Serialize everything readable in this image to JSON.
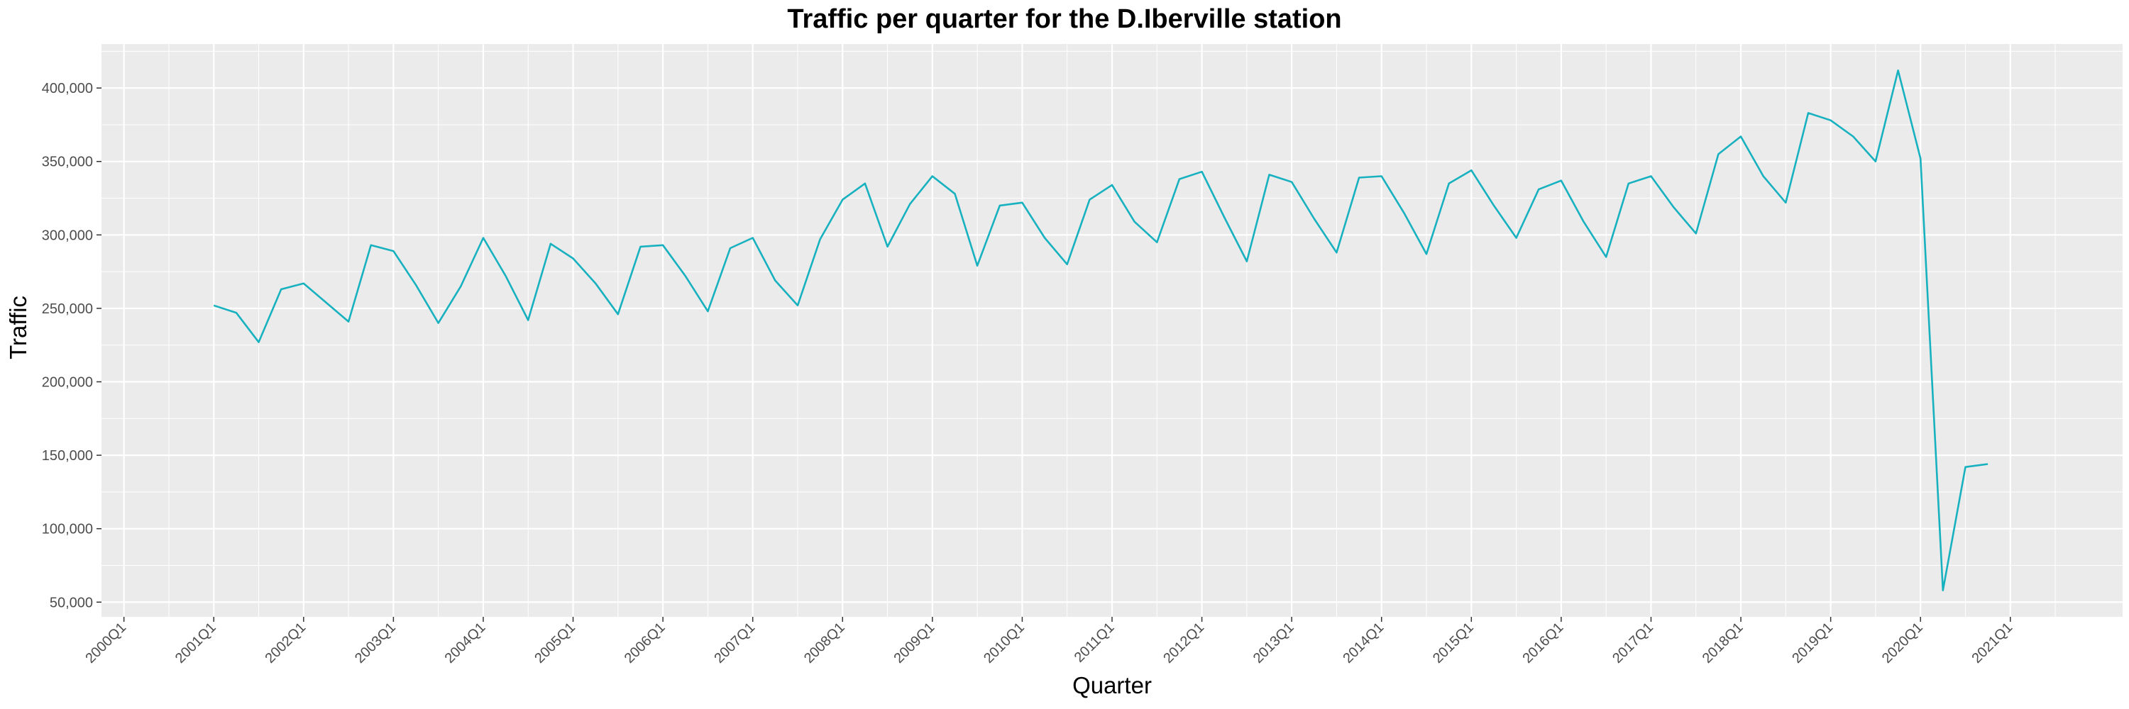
{
  "chart_data": {
    "type": "line",
    "title": "Traffic per quarter for the D.Iberville station",
    "xlabel": "Quarter",
    "ylabel": "Traffic",
    "x_tick_labels": [
      "2000Q1",
      "2001Q1",
      "2002Q1",
      "2003Q1",
      "2004Q1",
      "2005Q1",
      "2006Q1",
      "2007Q1",
      "2008Q1",
      "2009Q1",
      "2010Q1",
      "2011Q1",
      "2012Q1",
      "2013Q1",
      "2014Q1",
      "2015Q1",
      "2016Q1",
      "2017Q1",
      "2018Q1",
      "2019Q1",
      "2020Q1",
      "2021Q1"
    ],
    "y_ticks": [
      50000,
      100000,
      150000,
      200000,
      250000,
      300000,
      350000,
      400000
    ],
    "y_tick_labels": [
      "50,000",
      "100,000",
      "150,000",
      "200,000",
      "250,000",
      "300,000",
      "350,000",
      "400,000"
    ],
    "xlim": [
      "2000Q1",
      "2021Q4"
    ],
    "ylim": [
      40000,
      430000
    ],
    "grid": true,
    "series": [
      {
        "color": "#17b1bf",
        "x": [
          "2001Q1",
          "2001Q2",
          "2001Q3",
          "2001Q4",
          "2002Q1",
          "2002Q2",
          "2002Q3",
          "2002Q4",
          "2003Q1",
          "2003Q2",
          "2003Q3",
          "2003Q4",
          "2004Q1",
          "2004Q2",
          "2004Q3",
          "2004Q4",
          "2005Q1",
          "2005Q2",
          "2005Q3",
          "2005Q4",
          "2006Q1",
          "2006Q2",
          "2006Q3",
          "2006Q4",
          "2007Q1",
          "2007Q2",
          "2007Q3",
          "2007Q4",
          "2008Q1",
          "2008Q2",
          "2008Q3",
          "2008Q4",
          "2009Q1",
          "2009Q2",
          "2009Q3",
          "2009Q4",
          "2010Q1",
          "2010Q2",
          "2010Q3",
          "2010Q4",
          "2011Q1",
          "2011Q2",
          "2011Q3",
          "2011Q4",
          "2012Q1",
          "2012Q2",
          "2012Q3",
          "2012Q4",
          "2013Q1",
          "2013Q2",
          "2013Q3",
          "2013Q4",
          "2014Q1",
          "2014Q2",
          "2014Q3",
          "2014Q4",
          "2015Q1",
          "2015Q2",
          "2015Q3",
          "2015Q4",
          "2016Q1",
          "2016Q2",
          "2016Q3",
          "2016Q4",
          "2017Q1",
          "2017Q2",
          "2017Q3",
          "2017Q4",
          "2018Q1",
          "2018Q2",
          "2018Q3",
          "2018Q4",
          "2019Q1",
          "2019Q2",
          "2019Q3",
          "2019Q4",
          "2020Q1",
          "2020Q2",
          "2020Q3",
          "2020Q4"
        ],
        "values": [
          252000,
          247000,
          227000,
          263000,
          267000,
          254000,
          241000,
          293000,
          289000,
          266000,
          240000,
          265000,
          298000,
          272000,
          242000,
          294000,
          284000,
          267000,
          246000,
          292000,
          293000,
          272000,
          248000,
          291000,
          298000,
          269000,
          252000,
          297000,
          324000,
          335000,
          292000,
          321000,
          340000,
          328000,
          279000,
          320000,
          322000,
          298000,
          280000,
          324000,
          334000,
          309000,
          295000,
          338000,
          343000,
          312000,
          282000,
          341000,
          336000,
          311000,
          288000,
          339000,
          340000,
          315000,
          287000,
          335000,
          344000,
          320000,
          298000,
          331000,
          337000,
          309000,
          285000,
          335000,
          340000,
          319000,
          301000,
          355000,
          367000,
          340000,
          322000,
          383000,
          378000,
          367000,
          350000,
          412000,
          352000,
          58000,
          142000,
          144000
        ]
      }
    ]
  }
}
